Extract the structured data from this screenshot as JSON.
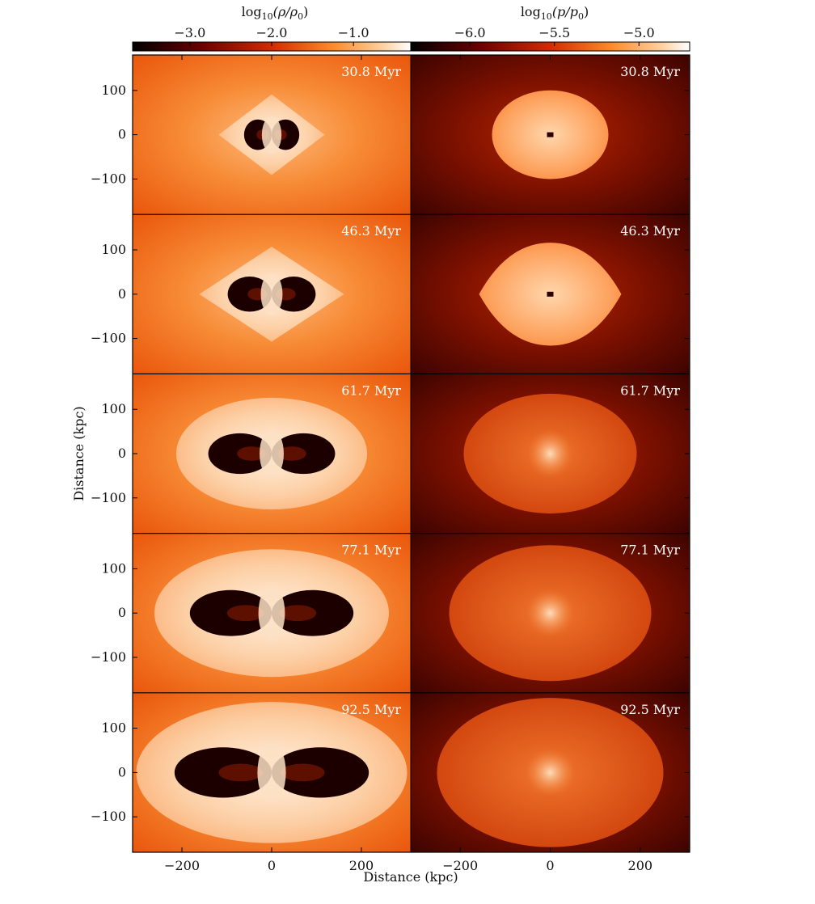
{
  "figure": {
    "colorbars": [
      {
        "label_main": "log",
        "label_sub": "10",
        "label_expr": "(ρ/ρ",
        "label_sub2": "0",
        "label_tail": ")",
        "ticks": [
          "−3.0",
          "−2.0",
          "−1.0"
        ],
        "tick_values": [
          -3.0,
          -2.0,
          -1.0
        ],
        "range": [
          -3.7,
          -0.3
        ]
      },
      {
        "label_main": "log",
        "label_sub": "10",
        "label_expr": "(p/p",
        "label_sub2": "0",
        "label_tail": ")",
        "ticks": [
          "−6.0",
          "−5.5",
          "−5.0"
        ],
        "tick_values": [
          -6.0,
          -5.5,
          -5.0
        ],
        "range": [
          -6.35,
          -4.7
        ]
      }
    ],
    "times": [
      "30.8 Myr",
      "46.3 Myr",
      "61.7 Myr",
      "77.1 Myr",
      "92.5 Myr"
    ],
    "y_ticks": [
      "100",
      "0",
      "−100"
    ],
    "y_tick_values": [
      100,
      0,
      -100
    ],
    "x_ticks_left": [
      "−200",
      "0",
      "200"
    ],
    "x_ticks_right": [
      "−200",
      "0",
      "200"
    ],
    "x_tick_values": [
      -200,
      0,
      200
    ],
    "x_range": [
      -310,
      310
    ],
    "y_range": [
      -180,
      180
    ],
    "xlabel": "Distance (kpc)",
    "ylabel": "Distance (kpc)",
    "colors": {
      "density_bg": "#f2620a",
      "density_halo": "#fdba80",
      "density_cocoon": "#fde8d2",
      "density_cavity": "#1a0000",
      "pressure_bg": "#5a0800",
      "pressure_shell": "#fb9f5c",
      "pressure_core": "#ffd9b5"
    }
  }
}
